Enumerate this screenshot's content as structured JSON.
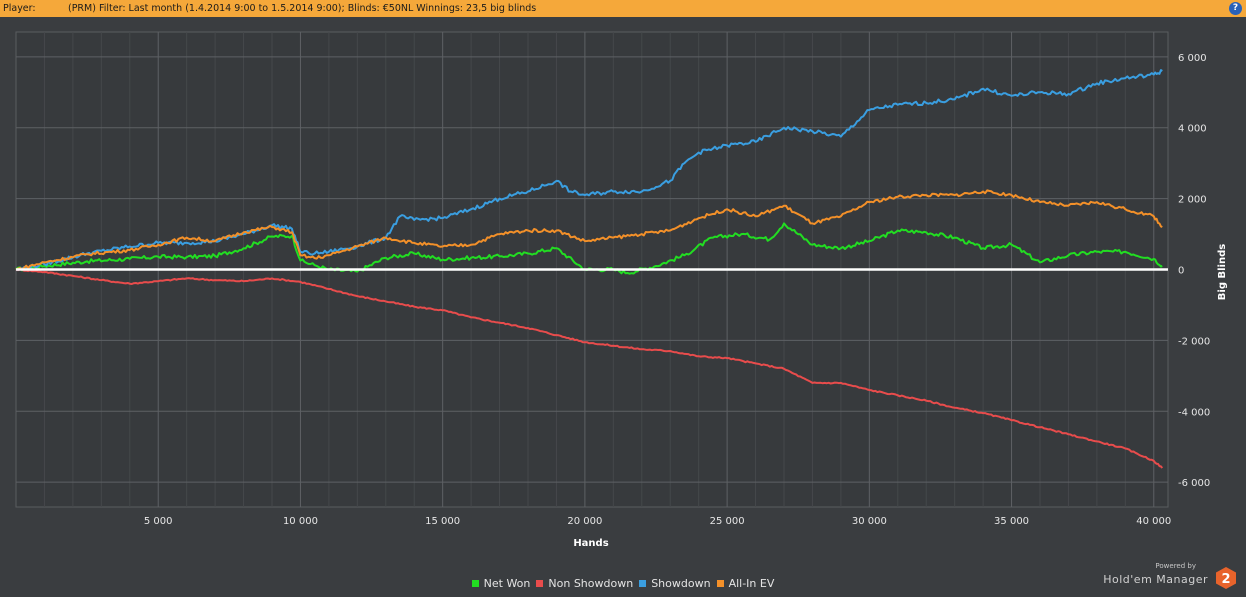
{
  "header": {
    "player_label": "Player:",
    "filter_text": "(PRM) Filter:  Last month (1.4.2014 9:00 to 1.5.2014 9:00); Blinds: €50NL Winnings:  23,5 big blinds",
    "help_label": "?"
  },
  "branding": {
    "powered_by": "Powered by",
    "product": "Hold'em Manager",
    "logo_text": "2"
  },
  "chart_data": {
    "type": "line",
    "xlabel": "Hands",
    "ylabel": "Big Blinds",
    "xlim": [
      0,
      40500
    ],
    "ylim": [
      -6700,
      6700
    ],
    "x_ticks": [
      5000,
      10000,
      15000,
      20000,
      25000,
      30000,
      35000,
      40000
    ],
    "x_tick_labels": [
      "5 000",
      "10 000",
      "15 000",
      "20 000",
      "25 000",
      "30 000",
      "35 000",
      "40 000"
    ],
    "y_ticks": [
      6000,
      4000,
      2000,
      0,
      -2000,
      -4000,
      -6000
    ],
    "y_tick_labels": [
      "6 000",
      "4 000",
      "2 000",
      "0",
      "-2 000",
      "-4 000",
      "-6 000"
    ],
    "grid": true,
    "legend_position": "bottom",
    "series": [
      {
        "name": "Net Won",
        "color": "#22dd22",
        "x": [
          0,
          1000,
          2500,
          4000,
          5000,
          6000,
          7000,
          8000,
          9000,
          9700,
          10000,
          10500,
          11000,
          12000,
          13000,
          14000,
          15000,
          16000,
          17000,
          18000,
          19000,
          20000,
          21000,
          21500,
          22500,
          23500,
          24500,
          25500,
          26500,
          27000,
          28000,
          29000,
          30000,
          31000,
          32000,
          33000,
          34000,
          35000,
          36000,
          37000,
          38000,
          39000,
          40000,
          40300
        ],
        "values": [
          0,
          100,
          230,
          300,
          360,
          350,
          380,
          600,
          930,
          950,
          250,
          120,
          0,
          -60,
          330,
          450,
          280,
          330,
          370,
          450,
          600,
          0,
          0,
          -100,
          100,
          400,
          900,
          1000,
          850,
          1300,
          700,
          600,
          800,
          1100,
          1050,
          900,
          600,
          700,
          200,
          400,
          500,
          500,
          300,
          100
        ]
      },
      {
        "name": "Non Showdown",
        "color": "#e84c4c",
        "x": [
          0,
          1000,
          2000,
          3000,
          4000,
          5000,
          6000,
          7000,
          8000,
          9000,
          10000,
          11000,
          12000,
          13000,
          14000,
          15000,
          16000,
          17000,
          18000,
          19000,
          20000,
          21000,
          22000,
          23000,
          24000,
          25000,
          26000,
          27000,
          28000,
          29000,
          30000,
          31000,
          32000,
          33000,
          34000,
          35000,
          36000,
          37000,
          38000,
          39000,
          40000,
          40300
        ],
        "values": [
          0,
          -70,
          -180,
          -300,
          -400,
          -330,
          -250,
          -300,
          -330,
          -250,
          -350,
          -550,
          -750,
          -900,
          -1050,
          -1150,
          -1350,
          -1500,
          -1650,
          -1850,
          -2050,
          -2150,
          -2250,
          -2300,
          -2450,
          -2500,
          -2650,
          -2800,
          -3200,
          -3200,
          -3400,
          -3550,
          -3700,
          -3900,
          -4050,
          -4250,
          -4450,
          -4650,
          -4850,
          -5050,
          -5400,
          -5600
        ]
      },
      {
        "name": "Showdown",
        "color": "#3a9ee0",
        "x": [
          0,
          1000,
          2500,
          4000,
          5000,
          6000,
          7000,
          8000,
          9000,
          9700,
          10000,
          10500,
          11000,
          12000,
          13000,
          13500,
          14000,
          15000,
          16000,
          17000,
          18000,
          19000,
          19500,
          20000,
          21000,
          22000,
          23000,
          23500,
          24000,
          25000,
          26000,
          27000,
          28000,
          29000,
          30000,
          31000,
          32000,
          33000,
          34000,
          35000,
          36000,
          37000,
          38000,
          39000,
          40000,
          40300
        ],
        "values": [
          0,
          150,
          450,
          650,
          750,
          750,
          800,
          1000,
          1250,
          1150,
          500,
          450,
          500,
          650,
          900,
          1500,
          1400,
          1450,
          1700,
          2000,
          2200,
          2500,
          2200,
          2100,
          2200,
          2200,
          2500,
          3000,
          3300,
          3500,
          3600,
          4000,
          3900,
          3750,
          4500,
          4650,
          4700,
          4800,
          5100,
          4900,
          5000,
          4950,
          5250,
          5400,
          5500,
          5600
        ]
      },
      {
        "name": "All-In EV",
        "color": "#f39029",
        "x": [
          0,
          1000,
          2500,
          4000,
          5000,
          6000,
          7000,
          8000,
          9000,
          9700,
          10000,
          10500,
          11000,
          12000,
          13000,
          14000,
          15000,
          16000,
          17000,
          18000,
          19000,
          20000,
          21000,
          22000,
          23000,
          24000,
          25000,
          26000,
          27000,
          28000,
          29000,
          30000,
          31000,
          32000,
          33000,
          34000,
          35000,
          36000,
          37000,
          38000,
          39000,
          40000,
          40300
        ],
        "values": [
          0,
          200,
          430,
          550,
          700,
          900,
          800,
          1050,
          1200,
          1050,
          400,
          320,
          400,
          650,
          900,
          750,
          650,
          700,
          1000,
          1100,
          1100,
          800,
          900,
          1000,
          1100,
          1450,
          1700,
          1500,
          1800,
          1300,
          1500,
          1900,
          2050,
          2100,
          2100,
          2200,
          2100,
          1900,
          1800,
          1900,
          1700,
          1500,
          1200
        ]
      }
    ]
  }
}
